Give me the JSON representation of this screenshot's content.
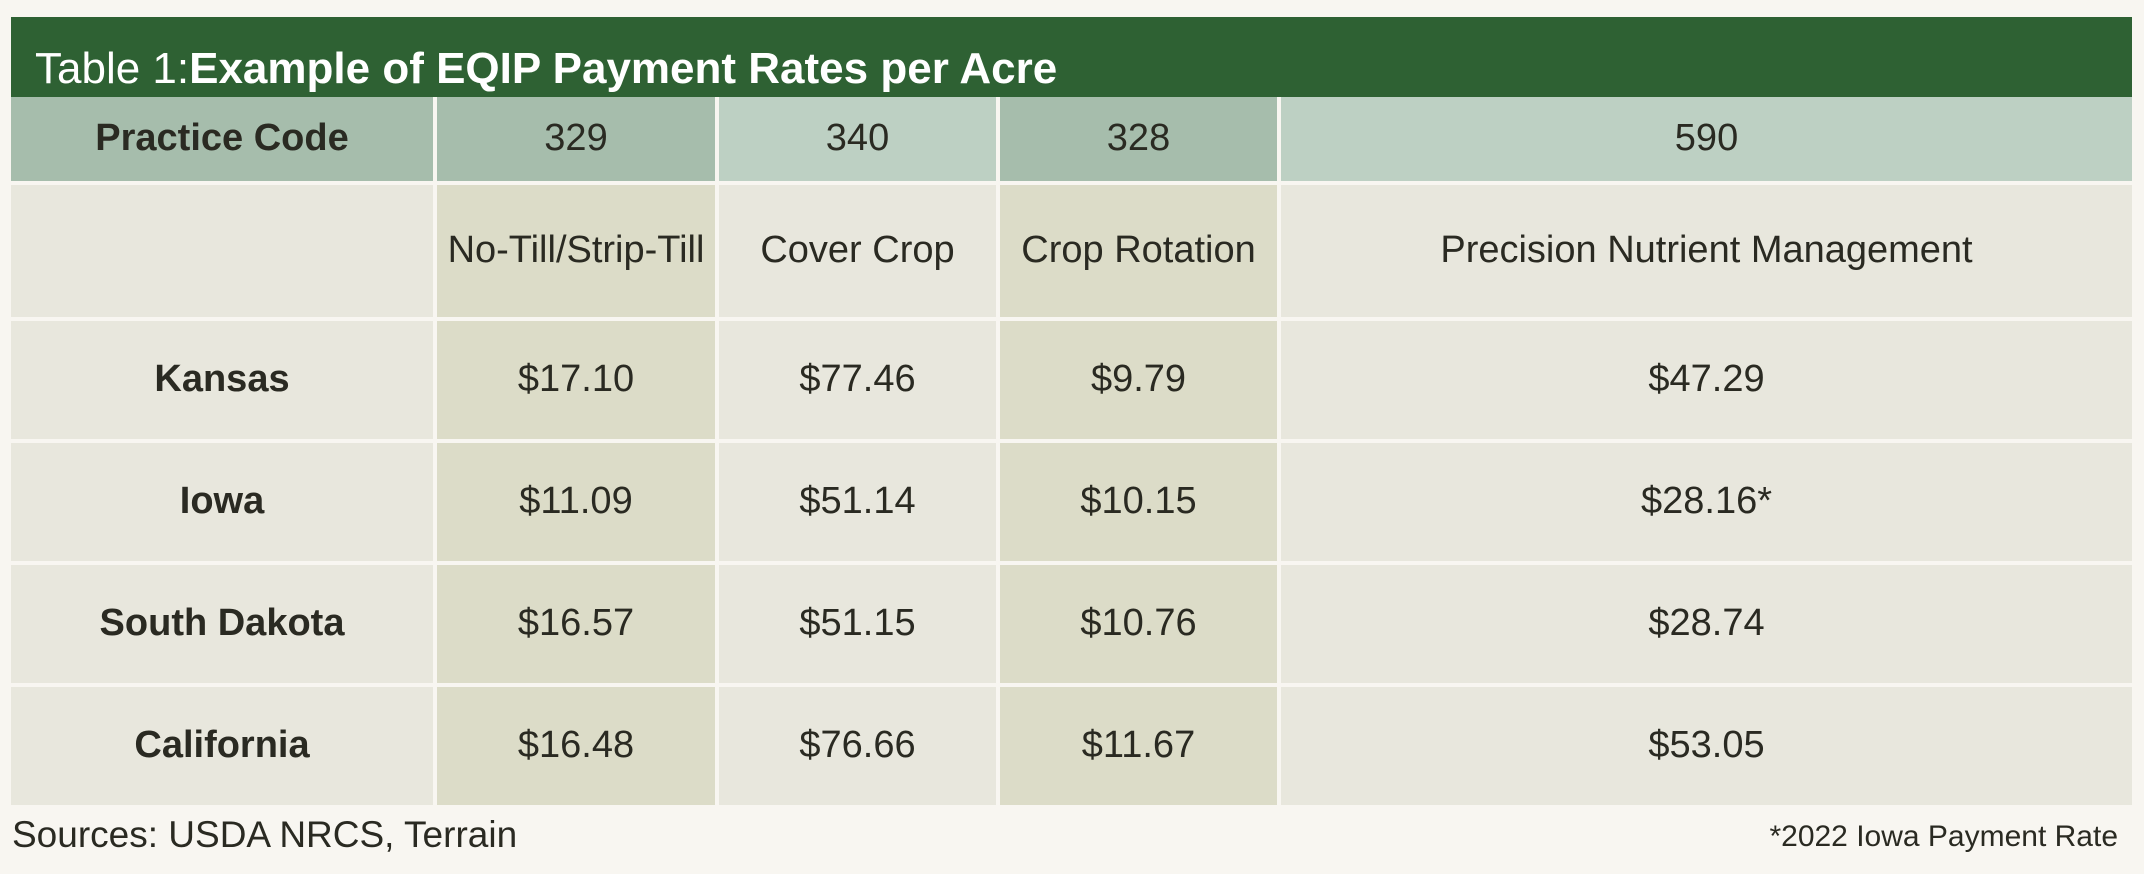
{
  "title": {
    "prefix": "Table 1: ",
    "main": "Example of EQIP Payment Rates per Acre"
  },
  "chart_data": {
    "type": "table",
    "header_label": "Practice Code",
    "columns": [
      {
        "code": "329",
        "name": "No-Till/Strip-Till"
      },
      {
        "code": "340",
        "name": "Cover Crop"
      },
      {
        "code": "328",
        "name": "Crop Rotation"
      },
      {
        "code": "590",
        "name": "Precision Nutrient Management"
      }
    ],
    "rows": [
      {
        "state": "Kansas",
        "values": [
          "$17.10",
          "$77.46",
          "$9.79",
          "$47.29"
        ]
      },
      {
        "state": "Iowa",
        "values": [
          "$11.09",
          "$51.14",
          "$10.15",
          "$28.16*"
        ]
      },
      {
        "state": "South Dakota",
        "values": [
          "$16.57",
          "$51.15",
          "$10.76",
          "$28.74"
        ]
      },
      {
        "state": "California",
        "values": [
          "$16.48",
          "$76.66",
          "$11.67",
          "$53.05"
        ]
      }
    ]
  },
  "footer": {
    "sources": "Sources: USDA NRCS, Terrain",
    "note": "*2022 Iowa Payment Rate"
  },
  "colors": {
    "title_bar": "#2e6133",
    "code_header_dark": "#a6bdac",
    "code_header_light": "#bdd0c3",
    "cell_dark": "#dcdcc8",
    "cell_light": "#e8e7dd",
    "background": "#f8f6f1"
  }
}
